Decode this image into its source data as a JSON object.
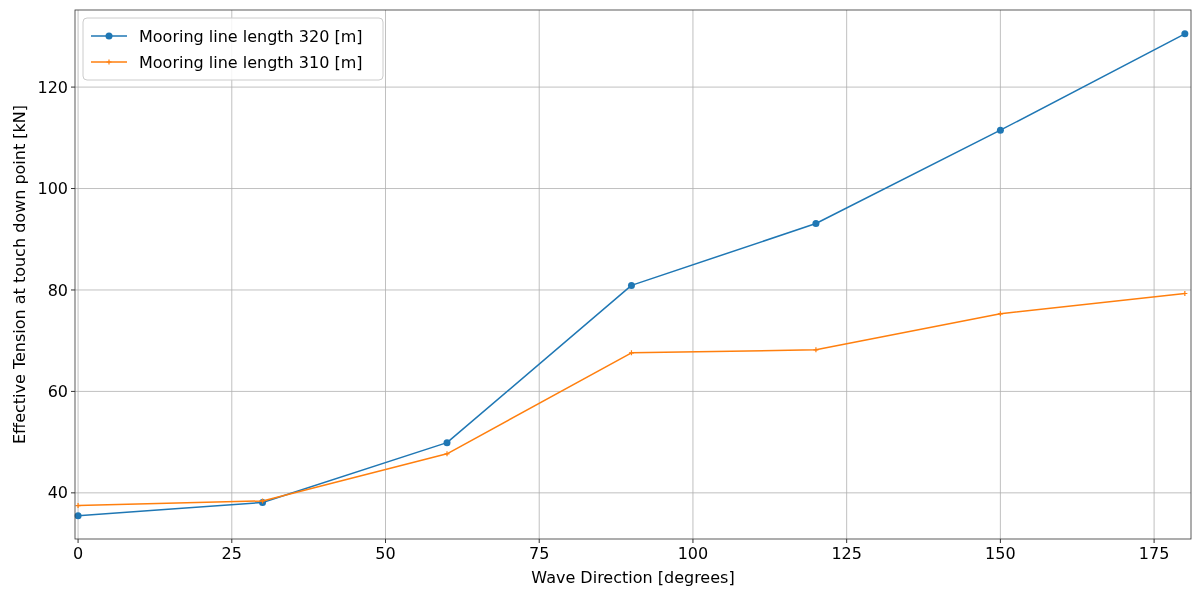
{
  "chart_data": {
    "type": "line",
    "xlabel": "Wave Direction [degrees]",
    "ylabel": "Effective Tension at touch down point [kN]",
    "x": [
      0,
      30,
      60,
      90,
      120,
      150,
      180
    ],
    "series": [
      {
        "name": "Mooring line length 320 [m]",
        "color": "#1f77b4",
        "marker": "circle",
        "values": [
          35.5,
          38.1,
          49.9,
          80.9,
          93.1,
          111.5,
          130.5
        ]
      },
      {
        "name": "Mooring line length 310 [m]",
        "color": "#ff7f0e",
        "marker": "cross",
        "values": [
          37.5,
          38.4,
          47.7,
          67.6,
          68.2,
          75.3,
          79.3
        ]
      }
    ],
    "xlim": [
      -0.5,
      181
    ],
    "ylim": [
      30.9,
      135.2
    ],
    "xticks": [
      0,
      25,
      50,
      75,
      100,
      125,
      150,
      175
    ],
    "yticks": [
      40,
      60,
      80,
      100,
      120
    ],
    "grid": true,
    "legend": "top left",
    "line_style": "solid"
  }
}
